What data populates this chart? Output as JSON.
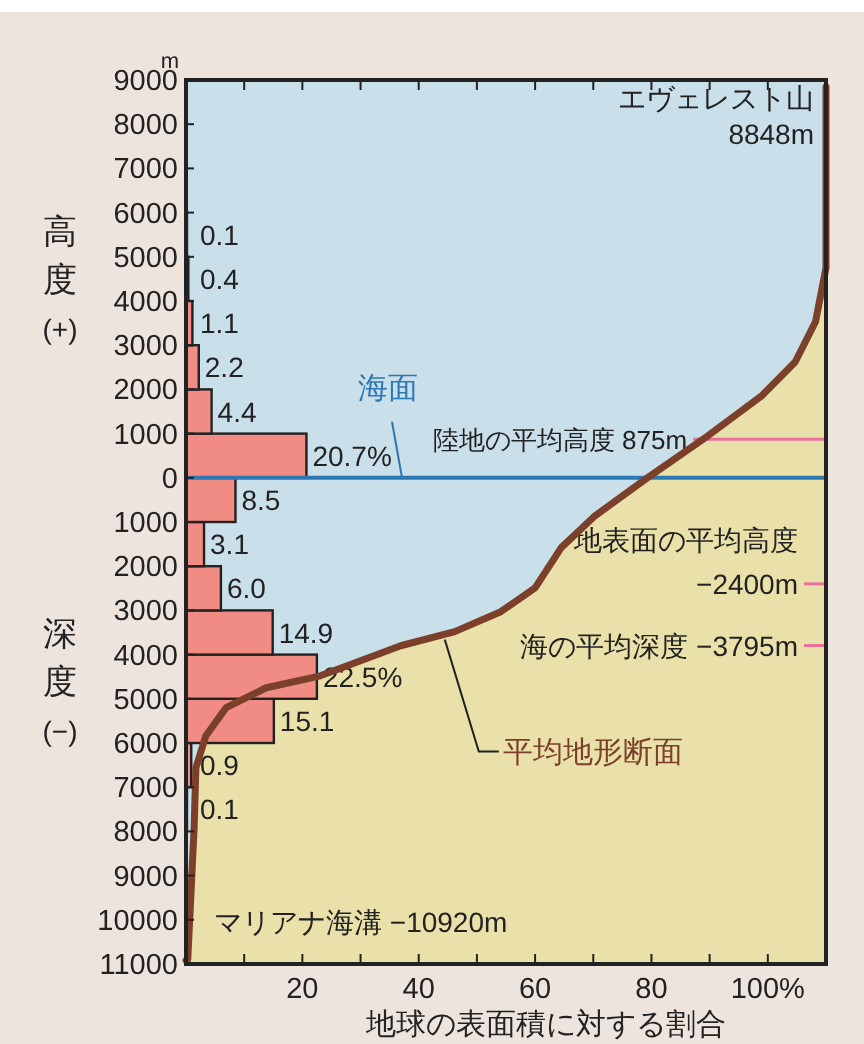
{
  "chart_data": {
    "type": "bar",
    "orientation": "horizontal",
    "xlabel": "地球の表面積に対する割合",
    "ylabel": "高度(+)",
    "xlim": [
      0,
      110
    ],
    "xticks": [
      {
        "value": 10,
        "label": null
      },
      20,
      {
        "value": 30,
        "label": null
      },
      40,
      {
        "value": 50,
        "label": null
      },
      60,
      {
        "value": 70,
        "label": null
      },
      80,
      {
        "value": 90,
        "label": null
      },
      {
        "value": 100,
        "label": "100%"
      }
    ],
    "ylim": [
      -11000,
      9000
    ],
    "yticks": [
      {
        "value": -11000,
        "label": "11000"
      },
      {
        "value": -10000,
        "label": "10000"
      },
      {
        "value": -9000,
        "label": "9000"
      },
      {
        "value": -8000,
        "label": "8000"
      },
      {
        "value": -7000,
        "label": "7000"
      },
      {
        "value": -6000,
        "label": "6000"
      },
      {
        "value": -5000,
        "label": "5000"
      },
      {
        "value": -4000,
        "label": "4000"
      },
      {
        "value": -3000,
        "label": "3000"
      },
      {
        "value": -2000,
        "label": "2000"
      },
      {
        "value": -1000,
        "label": "1000"
      },
      0,
      1000,
      2000,
      3000,
      4000,
      5000,
      6000,
      7000,
      8000,
      9000
    ],
    "series": [
      {
        "color": "#f08c84",
        "x": [
          -7500,
          -6500,
          -5500,
          -4500,
          -3500,
          -2500,
          -1500,
          -500,
          500,
          1500,
          2500,
          3500,
          4500,
          5500
        ],
        "values": [
          0.1,
          0.9,
          15.1,
          22.5,
          14.9,
          6.0,
          3.1,
          8.5,
          20.7,
          4.4,
          2.2,
          1.1,
          0.4,
          0.1
        ],
        "value_labels": [
          "0.1",
          "0.9",
          "15.1",
          "22.5%",
          "14.9",
          "6.0",
          "3.1",
          "8.5",
          "20.7%",
          "4.4",
          "2.2",
          "1.1",
          "0.4",
          "0.1"
        ]
      },
      {
        "type": "line",
        "name": "平均地形断面",
        "color": "#7b3f2a",
        "x": [
          -10920,
          -10900,
          -7920,
          -6560,
          -5840,
          -5200,
          -4750,
          -4480,
          -3800,
          -3480,
          -3030,
          -2490,
          -1580,
          -860,
          0,
          950,
          1860,
          2620,
          3530,
          4750,
          8848
        ],
        "values": [
          0,
          0.3,
          1.4,
          1.7,
          3.4,
          6.9,
          13.8,
          23.1,
          36.9,
          46.2,
          54.1,
          60.0,
          64.5,
          70.3,
          79.3,
          89.7,
          99.0,
          104.7,
          108.2,
          110,
          110
        ]
      }
    ],
    "ref_lines": [
      {
        "axis": "y",
        "value": 0,
        "label": "海面",
        "color": "#2b78b4",
        "line_style": "solid"
      },
      {
        "axis": "y",
        "value": 875,
        "label": "陸地の平均高度 875m",
        "color": "#e8709a"
      },
      {
        "axis": "y",
        "value": -2400,
        "label": "地表面の平均高度 −2400m",
        "color": "#e8709a"
      },
      {
        "axis": "y",
        "value": -3795,
        "label": "海の平均深度 −3795m",
        "color": "#e8709a"
      }
    ],
    "annotations": [
      "m",
      "深度(−)",
      "エヴェレスト山 8848m",
      "マリアナ海溝 −10920m"
    ]
  }
}
